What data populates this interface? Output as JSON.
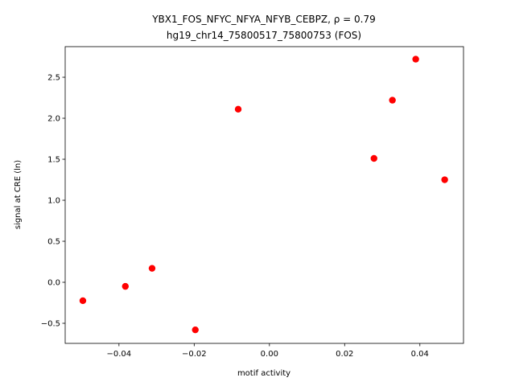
{
  "chart_data": {
    "type": "scatter",
    "title": "YBX1_FOS_NFYC_NFYA_NFYB_CEBPZ, ρ = 0.79",
    "subtitle": "hg19_chr14_75800517_75800753 (FOS)",
    "x_label": "motif activity",
    "y_label": "signal at CRE (ln)",
    "color": "#ff0000",
    "x": [
      -0.0496,
      -0.0383,
      -0.0312,
      -0.0197,
      -0.0083,
      0.0278,
      0.0327,
      0.0389,
      0.0466
    ],
    "values": [
      -0.225,
      -0.05,
      0.17,
      -0.58,
      2.11,
      1.51,
      2.22,
      2.72,
      1.25
    ],
    "xlim": [
      -0.0543,
      0.0516
    ],
    "ylim": [
      -0.745,
      2.873
    ],
    "xticks": [
      {
        "value": -0.04,
        "label": "−0.04"
      },
      {
        "value": -0.02,
        "label": "−0.02"
      },
      {
        "value": 0,
        "label": "0.00"
      },
      {
        "value": 0.02,
        "label": "0.02"
      },
      {
        "value": 0.04,
        "label": "0.04"
      }
    ],
    "yticks": [
      {
        "value": -0.5,
        "label": "−0.5"
      },
      {
        "value": 0,
        "label": "0.0"
      },
      0.5,
      {
        "value": 1,
        "label": "1.0"
      },
      1.5,
      {
        "value": 2,
        "label": "2.0"
      },
      2.5
    ]
  }
}
